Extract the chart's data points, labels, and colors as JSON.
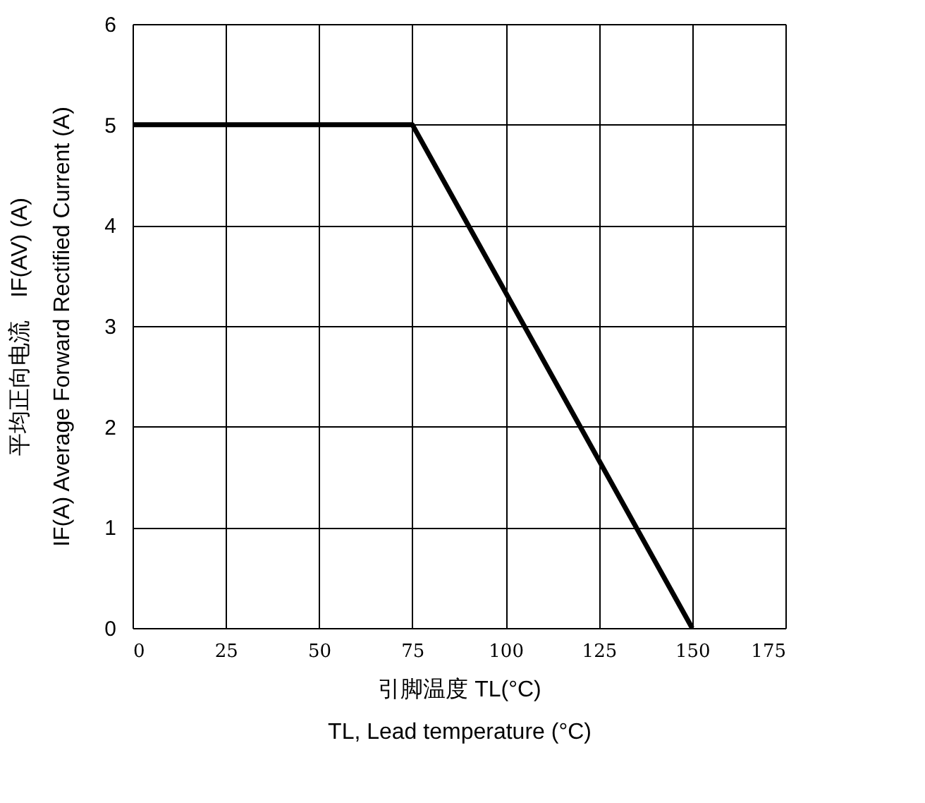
{
  "chart_data": {
    "type": "line",
    "x": [
      0,
      75,
      150
    ],
    "series": [
      {
        "color": "#000000",
        "values": [
          5,
          5,
          0
        ]
      }
    ],
    "xlim": [
      0,
      175
    ],
    "xticks": [
      0,
      25,
      50,
      75,
      100,
      125,
      150,
      175
    ],
    "ylim": [
      0,
      6
    ],
    "yticks": [
      0,
      1,
      2,
      3,
      4,
      5,
      6
    ],
    "xlabel": "引脚温度 TL(°C)\nTL, Lead temperature (°C)",
    "ylabel": "平均正向电流　IF(AV) (A)\nIF(A)  Average Forward Rectified Current (A)",
    "grid": true,
    "marker": "none",
    "line_style": "solid"
  }
}
